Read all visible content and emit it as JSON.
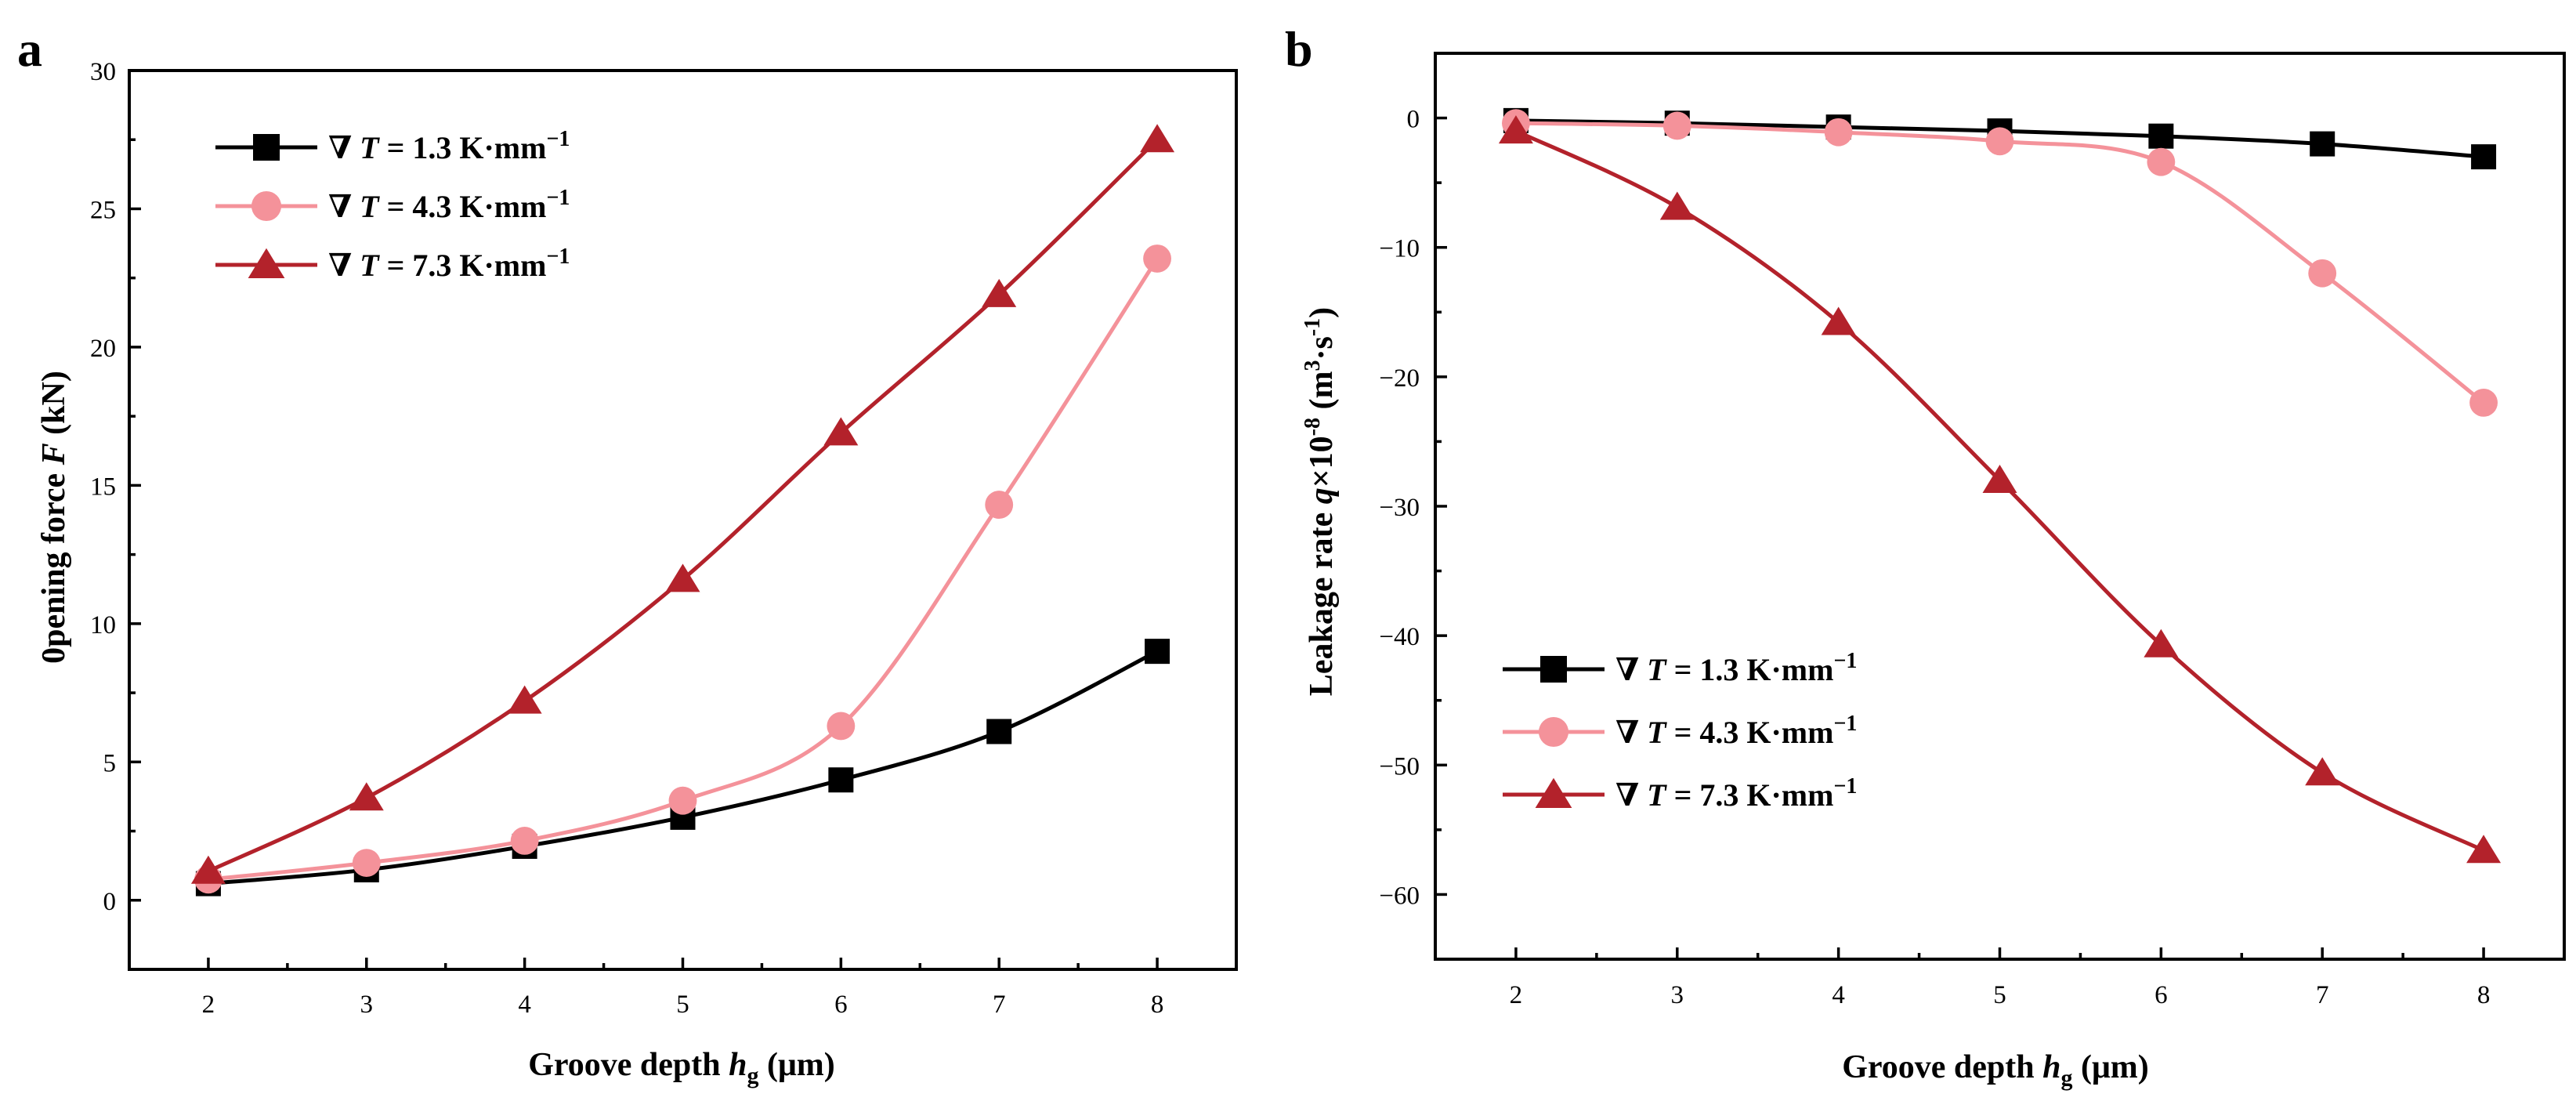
{
  "chart_data": [
    {
      "panel": "a",
      "type": "line",
      "xlabel": "Groove depth hg (μm)",
      "xlabel_parts": {
        "prefix": "Groove depth ",
        "var": "h",
        "sub": "g",
        "suffix": " (μm)"
      },
      "ylabel": "0pening force F (kN)",
      "ylabel_parts": {
        "prefix": "0pening force ",
        "var": "F",
        "suffix": " (kN)"
      },
      "xlim": [
        1.5,
        8.5
      ],
      "ylim": [
        -2.5,
        30
      ],
      "x_ticks": [
        2,
        3,
        4,
        5,
        6,
        7,
        8
      ],
      "y_ticks": [
        0,
        5,
        10,
        15,
        20,
        25,
        30
      ],
      "x": [
        2,
        3,
        4,
        5,
        6,
        7,
        8
      ],
      "legend_position": "top-left",
      "series": [
        {
          "name": "∇T = 1.3 K·mm−1",
          "name_parts": {
            "nabla": "∇",
            "var": "T",
            "text": " = 1.3 K·mm",
            "sup": "−1"
          },
          "color": "#000000",
          "marker": "square",
          "values": [
            0.6,
            1.1,
            1.95,
            3.0,
            4.35,
            6.1,
            9.0
          ]
        },
        {
          "name": "∇T = 4.3 K·mm−1",
          "name_parts": {
            "nabla": "∇",
            "var": "T",
            "text": " = 4.3 K·mm",
            "sup": "−1"
          },
          "color": "#f4929a",
          "marker": "circle",
          "values": [
            0.75,
            1.35,
            2.15,
            3.6,
            6.3,
            14.3,
            23.2
          ]
        },
        {
          "name": "∇T = 7.3 K·mm−1",
          "name_parts": {
            "nabla": "∇",
            "var": "T",
            "text": " = 7.3 K·mm",
            "sup": "−1"
          },
          "color": "#b3222b",
          "marker": "triangle",
          "values": [
            1.05,
            3.7,
            7.2,
            11.6,
            16.9,
            21.9,
            27.5
          ]
        }
      ]
    },
    {
      "panel": "b",
      "type": "line",
      "xlabel": "Groove depth hg (μm)",
      "xlabel_parts": {
        "prefix": "Groove depth ",
        "var": "h",
        "sub": "g",
        "suffix": " (μm)"
      },
      "ylabel": "Leakage rate q×10-8 (m3·s-1)",
      "ylabel_parts": {
        "prefix": "Leakage rate ",
        "var": "q",
        "mid": "×10",
        "sup1": "-8",
        "text2": " (m",
        "sup2": "3",
        "text3": "·s",
        "sup3": "-1",
        "suffix": ")"
      },
      "xlim": [
        1.5,
        8.5
      ],
      "ylim": [
        -65,
        5
      ],
      "x_ticks": [
        2,
        3,
        4,
        5,
        6,
        7,
        8
      ],
      "y_ticks": [
        0,
        -10,
        -20,
        -30,
        -40,
        -50,
        -60
      ],
      "y_tick_labels": [
        "0",
        "−10",
        "−20",
        "−30",
        "−40",
        "−50",
        "−60"
      ],
      "x": [
        2,
        3,
        4,
        5,
        6,
        7,
        8
      ],
      "legend_position": "bottom-left",
      "series": [
        {
          "name": "∇T = 1.3 K·mm−1",
          "name_parts": {
            "nabla": "∇",
            "var": "T",
            "text": " = 1.3 K·mm",
            "sup": "−1"
          },
          "color": "#000000",
          "marker": "square",
          "values": [
            -0.2,
            -0.4,
            -0.7,
            -1.0,
            -1.4,
            -2.0,
            -3.0
          ]
        },
        {
          "name": "∇T = 4.3 K·mm−1",
          "name_parts": {
            "nabla": "∇",
            "var": "T",
            "text": " = 4.3 K·mm",
            "sup": "−1"
          },
          "color": "#f4929a",
          "marker": "circle",
          "values": [
            -0.4,
            -0.6,
            -1.1,
            -1.8,
            -3.4,
            -12.0,
            -22.0
          ]
        },
        {
          "name": "∇T = 7.3 K·mm−1",
          "name_parts": {
            "nabla": "∇",
            "var": "T",
            "text": " = 7.3 K·mm",
            "sup": "−1"
          },
          "color": "#b3222b",
          "marker": "triangle",
          "values": [
            -1.0,
            -6.9,
            -15.8,
            -28.0,
            -40.7,
            -50.6,
            -56.6
          ]
        }
      ]
    }
  ]
}
